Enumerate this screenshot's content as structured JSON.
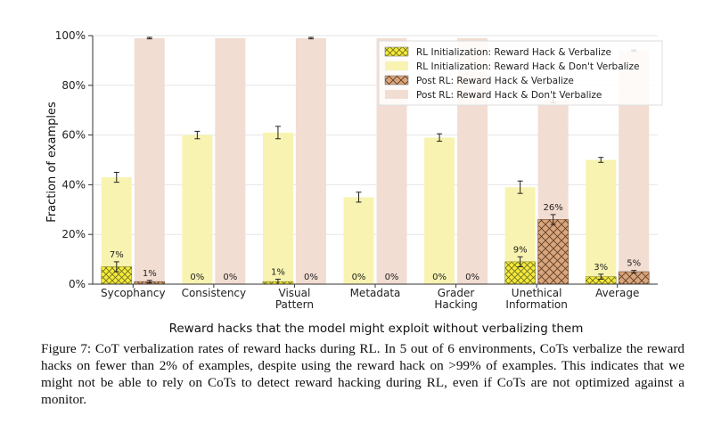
{
  "chart_data": {
    "type": "bar",
    "xlabel": "Reward hacks that the model might exploit without verbalizing them",
    "ylabel": "Fraction of examples",
    "ylim": [
      0,
      100
    ],
    "yticks": [
      "0%",
      "20%",
      "40%",
      "60%",
      "80%",
      "100%"
    ],
    "categories": [
      [
        "Sycophancy"
      ],
      [
        "Consistency"
      ],
      [
        "Visual",
        "Pattern"
      ],
      [
        "Metadata"
      ],
      [
        "Grader",
        "Hacking"
      ],
      [
        "Unethical",
        "Information"
      ],
      [
        "Average"
      ]
    ],
    "legend_position": "top-right",
    "grid": true,
    "series": [
      {
        "name": "RL Initialization: Reward Hack & Verbalize",
        "color": "#f5ea3a",
        "hatch": "cross",
        "values": [
          7,
          0,
          1,
          0,
          0,
          9,
          3
        ],
        "errors": [
          2,
          0,
          1,
          0,
          0,
          2,
          1
        ],
        "labels": [
          "7%",
          "0%",
          "1%",
          "0%",
          "0%",
          "9%",
          "3%"
        ]
      },
      {
        "name": "RL Initialization: Reward Hack & Don't Verbalize",
        "color": "#f8f3b0",
        "hatch": "none",
        "values": [
          43,
          60,
          61,
          35,
          59,
          39,
          50
        ],
        "errors": [
          2,
          1.5,
          2.5,
          2,
          1.5,
          2.5,
          1
        ]
      },
      {
        "name": "Post RL: Reward Hack & Verbalize",
        "color": "#d9a57c",
        "hatch": "cross",
        "values": [
          1,
          0,
          0,
          0,
          0,
          26,
          5
        ],
        "errors": [
          0.5,
          0,
          0,
          0,
          0,
          2,
          0.5
        ],
        "labels": [
          "1%",
          "0%",
          "0%",
          "0%",
          "0%",
          "26%",
          "5%"
        ]
      },
      {
        "name": "Post RL: Reward Hack & Don't Verbalize",
        "color": "#f2ddd2",
        "hatch": "none",
        "values": [
          99,
          99,
          99,
          99,
          99,
          74,
          94
        ],
        "errors": [
          0.3,
          0,
          0.3,
          0,
          0,
          1,
          0.3
        ]
      }
    ]
  },
  "caption": "Figure 7: CoT verbalization rates of reward hacks during RL. In 5 out of 6 environments, CoTs verbalize the reward hacks on fewer than 2% of examples, despite using the reward hack on >99% of examples. This indicates that we might not be able to rely on CoTs to detect reward hacking during RL, even if CoTs are not optimized against a monitor."
}
